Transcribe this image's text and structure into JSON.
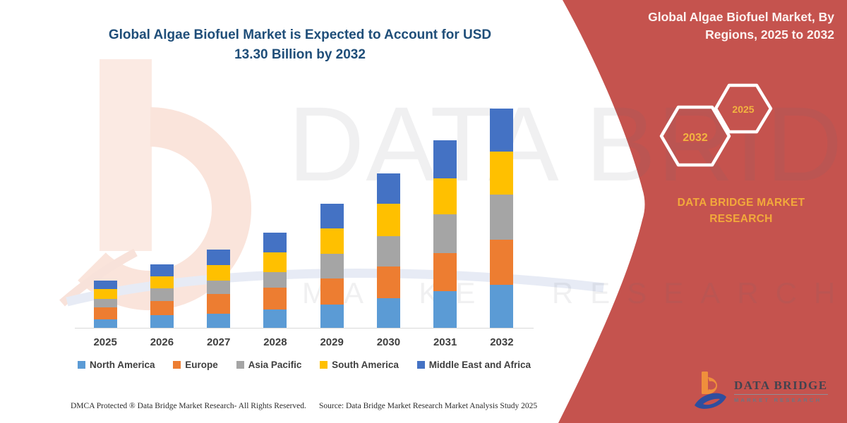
{
  "header": {
    "title_line1": "Global Algae Biofuel Market is Expected to Account for USD",
    "title_line2": "13.30 Billion by 2032",
    "right_title_line1": "Global Algae Biofuel Market, By",
    "right_title_line2": "Regions, 2025 to 2032"
  },
  "badges": {
    "hexagon_large_label": "2032",
    "hexagon_small_label": "2025"
  },
  "brand": {
    "name_line1": "DATA BRIDGE MARKET",
    "name_line2": "RESEARCH"
  },
  "watermark": {
    "line1": "DATA BRIDGE",
    "line2": "MARKET RESEARCH"
  },
  "chart_data": {
    "type": "bar",
    "subtype": "stacked-vertical",
    "unit": "USD Billion",
    "categories": [
      "2025",
      "2026",
      "2027",
      "2028",
      "2029",
      "2030",
      "2031",
      "2032"
    ],
    "series": [
      {
        "name": "North America",
        "color": "#5B9BD5",
        "values": [
          0.53,
          0.77,
          0.87,
          1.1,
          1.42,
          1.8,
          2.23,
          2.6
        ]
      },
      {
        "name": "Europe",
        "color": "#ED7D31",
        "values": [
          0.7,
          0.87,
          1.18,
          1.35,
          1.57,
          1.94,
          2.32,
          2.74
        ]
      },
      {
        "name": "Asia Pacific",
        "color": "#A5A5A5",
        "values": [
          0.53,
          0.74,
          0.83,
          0.93,
          1.52,
          1.8,
          2.32,
          2.73
        ]
      },
      {
        "name": "South America",
        "color": "#FFC000",
        "values": [
          0.61,
          0.74,
          0.93,
          1.21,
          1.51,
          1.99,
          2.2,
          2.6
        ]
      },
      {
        "name": "Middle East and Africa",
        "color": "#4472C4",
        "values": [
          0.48,
          0.75,
          0.95,
          1.17,
          1.52,
          1.85,
          2.3,
          2.63
        ]
      }
    ],
    "totals": [
      2.85,
      3.87,
      4.76,
      5.76,
      7.54,
      9.38,
      11.37,
      13.3
    ],
    "title": "Global Algae Biofuel Market is Expected to Account for USD 13.30 Billion by 2032",
    "xlabel": "",
    "ylabel": "",
    "ylim": [
      0,
      13.5
    ],
    "grid": false,
    "legend_position": "bottom",
    "axis_visible": "x-only"
  },
  "footer": {
    "dmca": "DMCA Protected ® Data Bridge Market Research-  All Rights Reserved.",
    "source": "Source: Data Bridge Market Research  Market Analysis Study 2025"
  },
  "logo": {
    "name": "DATA BRIDGE",
    "tagline": "MARKET RESEARCH"
  },
  "colors": {
    "background_accent_red": "#C5534E",
    "title_blue": "#1F4E79",
    "hexagon_label_yellow": "#F2B440",
    "brand_yellow": "#F2A93B",
    "axis_gray": "#D9D9D9",
    "label_gray": "#3F3F3F",
    "logo_orange": "#EF8F3C",
    "logo_blue": "#2E4E9E"
  }
}
